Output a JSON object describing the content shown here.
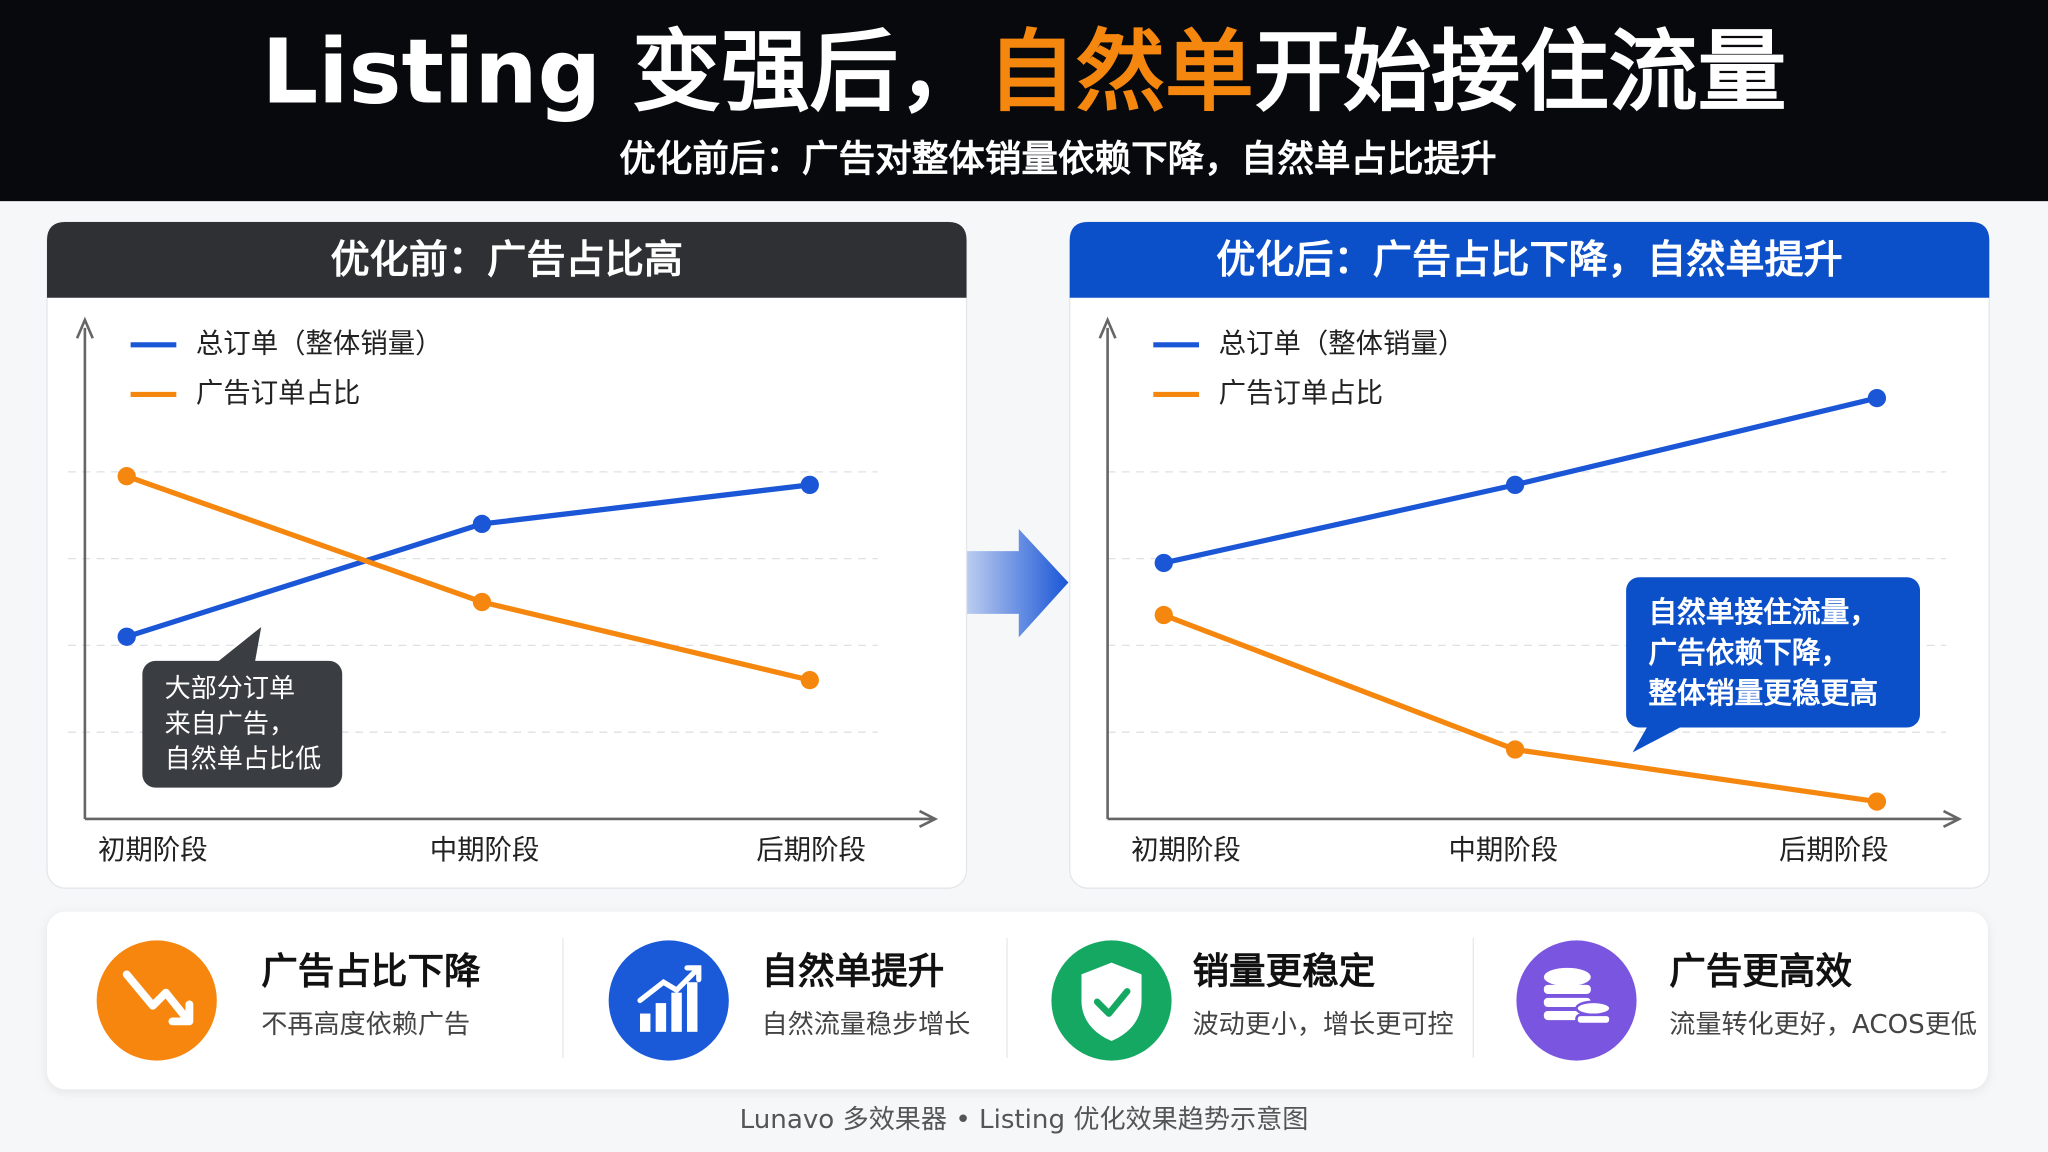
{
  "header": {
    "title_lead": "Listing 变强后，",
    "title_highlight": "自然单",
    "title_tail": "开始接住流量",
    "subtitle": "优化前后：广告对整体销量依赖下降，自然单占比提升"
  },
  "chart_data": [
    {
      "type": "line",
      "title": "优化前：广告占比高",
      "categories": [
        "初期阶段",
        "中期阶段",
        "后期阶段"
      ],
      "series": [
        {
          "name": "总订单（整体销量）",
          "color": "#1a56d6",
          "values": [
            42,
            68,
            77
          ]
        },
        {
          "name": "广告订单占比",
          "color": "#f5870f",
          "values": [
            79,
            50,
            32
          ]
        }
      ],
      "ylim": [
        0,
        115
      ],
      "yticks": [
        20,
        40,
        60,
        80
      ],
      "grid": true,
      "annotation": [
        "大部分订单",
        "来自广告，",
        "自然单占比低"
      ]
    },
    {
      "type": "line",
      "title": "优化后：广告占比下降，自然单提升",
      "categories": [
        "初期阶段",
        "中期阶段",
        "后期阶段"
      ],
      "series": [
        {
          "name": "总订单（整体销量）",
          "color": "#1a56d6",
          "values": [
            59,
            77,
            97
          ]
        },
        {
          "name": "广告订单占比",
          "color": "#f5870f",
          "values": [
            47,
            16,
            4
          ]
        }
      ],
      "ylim": [
        0,
        115
      ],
      "yticks": [
        20,
        40,
        60,
        80
      ],
      "grid": true,
      "annotation": [
        "自然单接住流量，",
        "广告依赖下降，",
        "整体销量更稳更高"
      ]
    }
  ],
  "features": [
    {
      "title": "广告占比下降",
      "desc": "不再高度依赖广告"
    },
    {
      "title": "自然单提升",
      "desc": "自然流量稳步增长"
    },
    {
      "title": "销量更稳定",
      "desc": "波动更小，增长更可控"
    },
    {
      "title": "广告更高效",
      "desc": "流量转化更好，ACOS更低"
    }
  ],
  "footer": "Lunavo 多效果器 • Listing 优化效果趋势示意图"
}
